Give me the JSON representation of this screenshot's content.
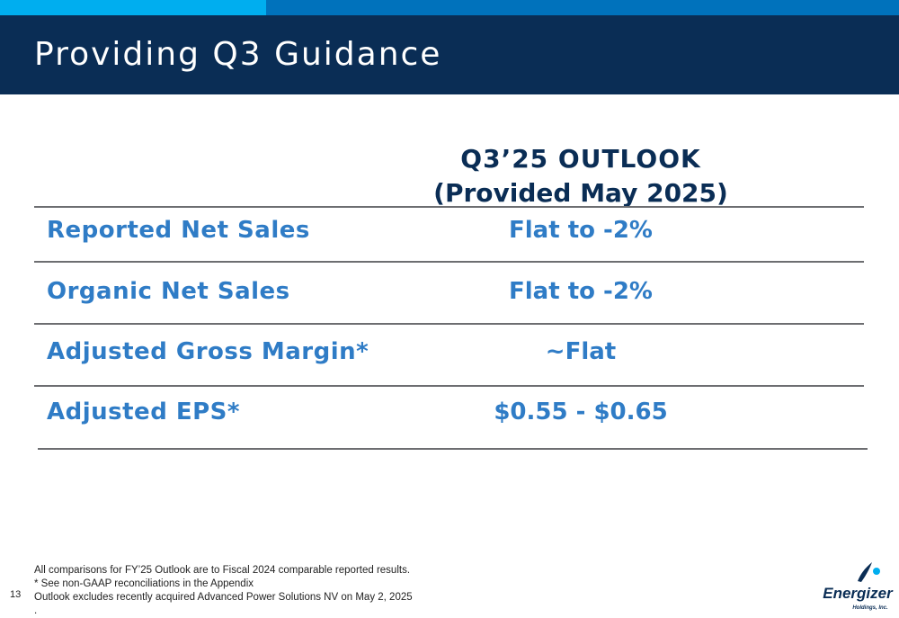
{
  "slide": {
    "title": "Providing Q3 Guidance",
    "page_number": "13"
  },
  "column_header": {
    "line1": "Q3’25 OUTLOOK",
    "line2": "(Provided May 2025)"
  },
  "rows": [
    {
      "label": "Reported Net Sales",
      "value": "Flat to -2%"
    },
    {
      "label": "Organic Net Sales",
      "value": "Flat to -2%"
    },
    {
      "label": "Adjusted Gross Margin*",
      "value": "~Flat"
    },
    {
      "label": "Adjusted EPS*",
      "value": "$0.55 - $0.65"
    }
  ],
  "footnotes": [
    "All comparisons for FY’25 Outlook are to Fiscal 2024 comparable reported results.",
    "* See non-GAAP reconciliations in the Appendix",
    "Outlook excludes recently acquired Advanced Power Solutions NV on May 2, 2025",
    "."
  ],
  "logo": {
    "brand": "Energizer",
    "sub": "Holdings, Inc."
  },
  "colors": {
    "header_bg": "#0a2d55",
    "accent_light": "#00aeef",
    "accent_mid": "#0072bc",
    "row_text": "#2f7cc6",
    "rule": "#6d6e71"
  }
}
